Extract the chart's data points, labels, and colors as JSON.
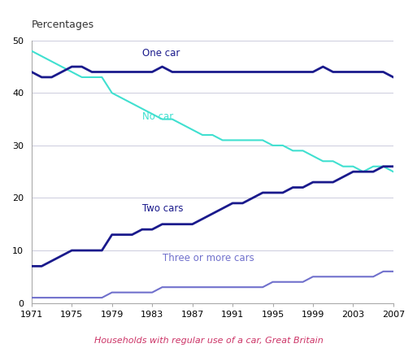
{
  "title": "Households with regular use of a car, Great Britain",
  "ylabel": "Percentages",
  "years": [
    1971,
    1972,
    1973,
    1974,
    1975,
    1976,
    1977,
    1978,
    1979,
    1980,
    1981,
    1982,
    1983,
    1984,
    1985,
    1986,
    1987,
    1988,
    1989,
    1990,
    1991,
    1992,
    1993,
    1994,
    1995,
    1996,
    1997,
    1998,
    1999,
    2000,
    2001,
    2002,
    2003,
    2004,
    2005,
    2006,
    2007
  ],
  "one_car": [
    44,
    43,
    43,
    44,
    45,
    45,
    44,
    44,
    44,
    44,
    44,
    44,
    44,
    45,
    44,
    44,
    44,
    44,
    44,
    44,
    44,
    44,
    44,
    44,
    44,
    44,
    44,
    44,
    44,
    45,
    44,
    44,
    44,
    44,
    44,
    44,
    43
  ],
  "no_car": [
    48,
    47,
    46,
    45,
    44,
    43,
    43,
    43,
    40,
    39,
    38,
    37,
    36,
    35,
    35,
    34,
    33,
    32,
    32,
    31,
    31,
    31,
    31,
    31,
    30,
    30,
    29,
    29,
    28,
    27,
    27,
    26,
    26,
    25,
    26,
    26,
    25
  ],
  "two_cars": [
    7,
    7,
    8,
    9,
    10,
    10,
    10,
    10,
    13,
    13,
    13,
    14,
    14,
    15,
    15,
    15,
    15,
    16,
    17,
    18,
    19,
    19,
    20,
    21,
    21,
    21,
    22,
    22,
    23,
    23,
    23,
    24,
    25,
    25,
    25,
    26,
    26
  ],
  "three_or_more": [
    1,
    1,
    1,
    1,
    1,
    1,
    1,
    1,
    2,
    2,
    2,
    2,
    2,
    3,
    3,
    3,
    3,
    3,
    3,
    3,
    3,
    3,
    3,
    3,
    4,
    4,
    4,
    4,
    5,
    5,
    5,
    5,
    5,
    5,
    5,
    6,
    6
  ],
  "color_one_car": "#1a1a8c",
  "color_no_car": "#40e0d0",
  "color_two_cars": "#1a1a8c",
  "color_three": "#7070cc",
  "color_title": "#cc3366",
  "ylim": [
    0,
    50
  ],
  "yticks": [
    0,
    10,
    20,
    30,
    40,
    50
  ],
  "xticks": [
    1971,
    1975,
    1979,
    1983,
    1987,
    1991,
    1995,
    1999,
    2003,
    2007
  ],
  "bg_color": "#ffffff",
  "grid_color": "#ccccdd",
  "label_one_car": [
    "One car",
    1982,
    46.5
  ],
  "label_no_car": [
    "No car",
    1982,
    34.5
  ],
  "label_two_cars": [
    "Two cars",
    1982,
    17.0
  ],
  "label_three": [
    "Three or more cars",
    1984,
    7.5
  ]
}
